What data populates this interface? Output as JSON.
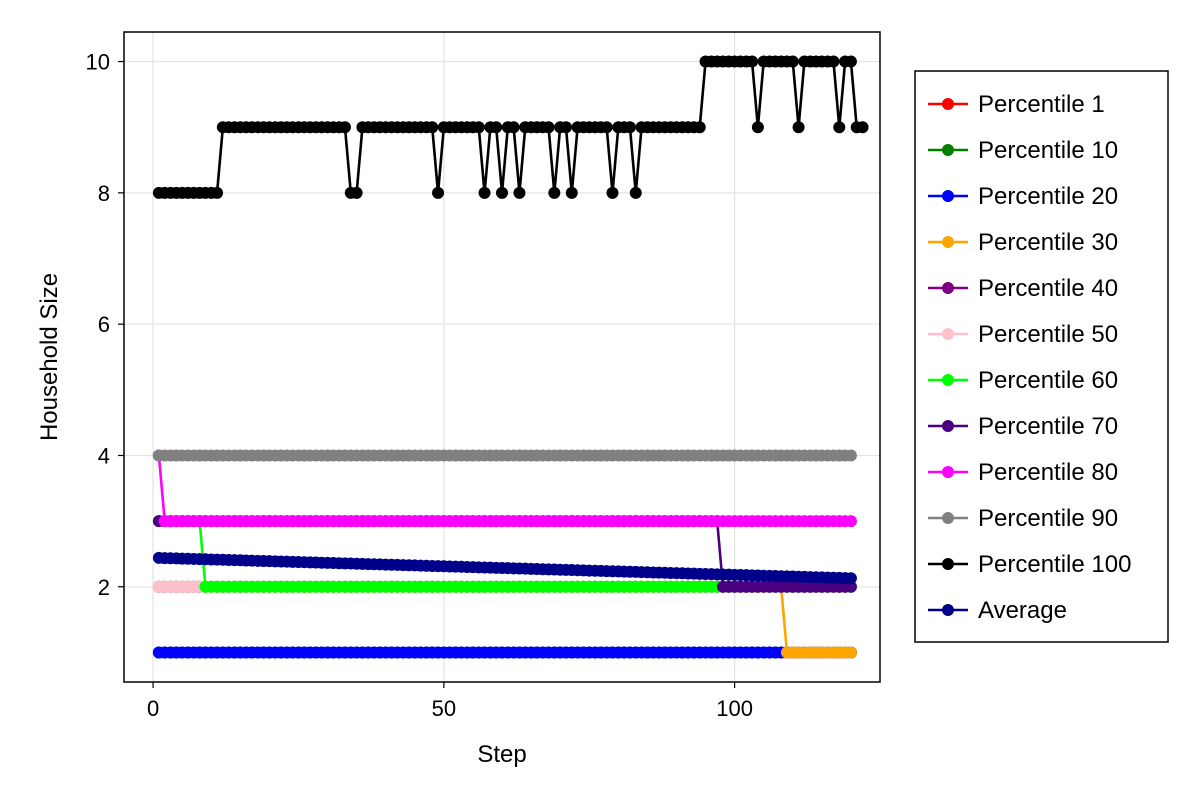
{
  "chart_data": {
    "type": "line",
    "title": "",
    "xlabel": "Step",
    "ylabel": "Household Size",
    "xlim": [
      -5,
      125
    ],
    "ylim": [
      0.55,
      10.45
    ],
    "xticks": [
      0,
      50,
      100
    ],
    "yticks": [
      2,
      4,
      6,
      8,
      10
    ],
    "grid": true,
    "legend_position": "right",
    "x_start": 1,
    "x_end": 120,
    "series": [
      {
        "name": "Percentile 1",
        "color": "#ff0000",
        "segments": [
          [
            1,
            1,
            120,
            1
          ]
        ]
      },
      {
        "name": "Percentile 10",
        "color": "#008000",
        "segments": [
          [
            1,
            1,
            120,
            1
          ]
        ]
      },
      {
        "name": "Percentile 20",
        "color": "#0000ff",
        "segments": [
          [
            1,
            1,
            120,
            1
          ]
        ]
      },
      {
        "name": "Percentile 30",
        "color": "#ffa500",
        "segments": [
          [
            1,
            2,
            108,
            2
          ],
          [
            109,
            1,
            120,
            1
          ]
        ]
      },
      {
        "name": "Percentile 40",
        "color": "#800080",
        "segments": [
          [
            1,
            2,
            120,
            2
          ]
        ]
      },
      {
        "name": "Percentile 50",
        "color": "#ffc0cb",
        "segments": [
          [
            1,
            2,
            8,
            2
          ],
          [
            9,
            2,
            120,
            2
          ]
        ]
      },
      {
        "name": "Percentile 60",
        "color": "#00ff00",
        "segments": [
          [
            1,
            3,
            8,
            3
          ],
          [
            9,
            2,
            120,
            2
          ]
        ]
      },
      {
        "name": "Percentile 70",
        "color": "#4b0082",
        "segments": [
          [
            1,
            3,
            97,
            3
          ],
          [
            98,
            2,
            120,
            2
          ]
        ]
      },
      {
        "name": "Percentile 80",
        "color": "#ff00ff",
        "segments": [
          [
            1,
            4,
            1,
            4
          ],
          [
            2,
            3,
            120,
            3
          ]
        ]
      },
      {
        "name": "Percentile 90",
        "color": "#808080",
        "segments": [
          [
            1,
            4,
            120,
            4
          ]
        ]
      },
      {
        "name": "Percentile 100",
        "color": "#000000",
        "values": [
          8,
          8,
          8,
          8,
          8,
          8,
          8,
          8,
          8,
          8,
          8,
          9,
          9,
          9,
          9,
          9,
          9,
          9,
          9,
          9,
          9,
          9,
          9,
          9,
          9,
          9,
          9,
          9,
          9,
          9,
          9,
          9,
          9,
          8,
          8,
          9,
          9,
          9,
          9,
          9,
          9,
          9,
          9,
          9,
          9,
          9,
          9,
          9,
          8,
          9,
          9,
          9,
          9,
          9,
          9,
          9,
          8,
          9,
          9,
          8,
          9,
          9,
          8,
          9,
          9,
          9,
          9,
          9,
          8,
          9,
          9,
          8,
          9,
          9,
          9,
          9,
          9,
          9,
          8,
          9,
          9,
          9,
          8,
          9,
          9,
          9,
          9,
          9,
          9,
          9,
          9,
          9,
          9,
          9,
          10,
          10,
          10,
          10,
          10,
          10,
          10,
          10,
          10,
          9,
          10,
          10,
          10,
          10,
          10,
          10,
          9,
          10,
          10,
          10,
          10,
          10,
          10,
          9,
          10,
          10,
          9,
          9
        ]
      },
      {
        "name": "Average",
        "color": "#00008b",
        "segments": [
          [
            1,
            2.44,
            120,
            2.13
          ]
        ]
      }
    ]
  }
}
